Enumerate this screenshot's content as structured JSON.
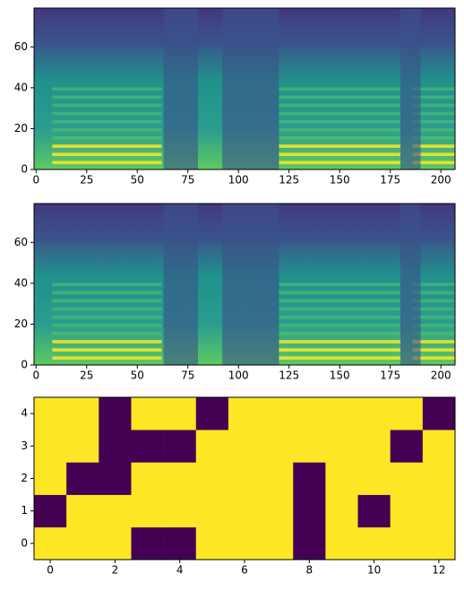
{
  "chart_data": [
    {
      "type": "image",
      "xlim": [
        -1,
        207
      ],
      "ylim": [
        0,
        79
      ],
      "xticks": [
        0,
        25,
        50,
        75,
        100,
        125,
        150,
        175,
        200
      ],
      "yticks": [
        0,
        20,
        40,
        60
      ],
      "colormap": [
        "#440154",
        "#3b528b",
        "#21918c",
        "#5ec962",
        "#fde725"
      ]
    },
    {
      "type": "image",
      "xlim": [
        -1,
        207
      ],
      "ylim": [
        0,
        79
      ],
      "xticks": [
        0,
        25,
        50,
        75,
        100,
        125,
        150,
        175,
        200
      ],
      "yticks": [
        0,
        20,
        40,
        60
      ],
      "colormap": [
        "#440154",
        "#3b528b",
        "#21918c",
        "#5ec962",
        "#fde725"
      ]
    },
    {
      "type": "heatmap",
      "xlim": [
        -0.5,
        12.5
      ],
      "ylim": [
        -0.5,
        4.5
      ],
      "xticks": [
        0,
        2,
        4,
        6,
        8,
        10,
        12
      ],
      "yticks": [
        0,
        1,
        2,
        3,
        4
      ],
      "colormap": [
        "#440154",
        "#fde725"
      ],
      "values": [
        [
          1,
          1,
          1,
          0,
          0,
          1,
          1,
          1,
          0,
          1,
          1,
          1,
          1
        ],
        [
          0,
          1,
          1,
          1,
          1,
          1,
          1,
          1,
          0,
          1,
          0,
          1,
          1
        ],
        [
          1,
          0,
          0,
          1,
          1,
          1,
          1,
          1,
          0,
          1,
          1,
          1,
          1
        ],
        [
          1,
          1,
          0,
          0,
          0,
          1,
          1,
          1,
          1,
          1,
          1,
          0,
          1
        ],
        [
          1,
          1,
          0,
          1,
          1,
          0,
          1,
          1,
          1,
          1,
          1,
          1,
          0
        ]
      ]
    }
  ]
}
